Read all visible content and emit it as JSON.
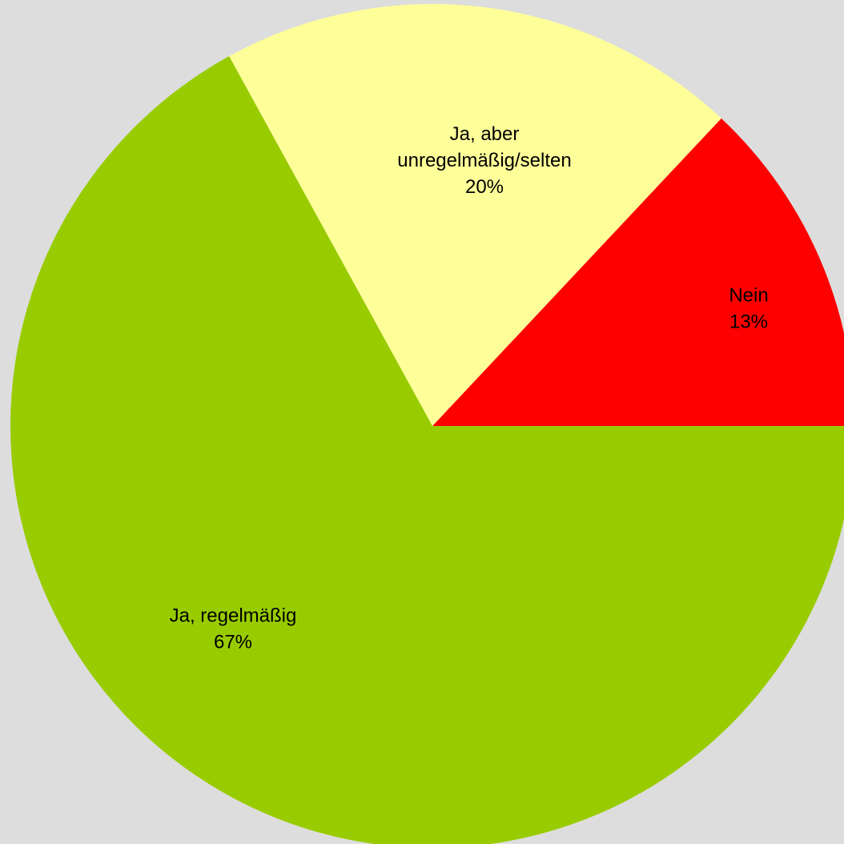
{
  "chart_data": {
    "type": "pie",
    "title": "",
    "start_angle_deg": 0,
    "direction": "counterclockwise",
    "slices": [
      {
        "label_lines": [
          "Nein"
        ],
        "percent_label": "13%",
        "value": 13,
        "color": "#ff0000"
      },
      {
        "label_lines": [
          "Ja, aber",
          "unregelmäßig/selten"
        ],
        "percent_label": "20%",
        "value": 20,
        "color": "#ffff99"
      },
      {
        "label_lines": [
          "Ja, regelmäßig"
        ],
        "percent_label": "67%",
        "value": 67,
        "color": "#99cc00"
      }
    ],
    "background_color": "#dddddd"
  }
}
